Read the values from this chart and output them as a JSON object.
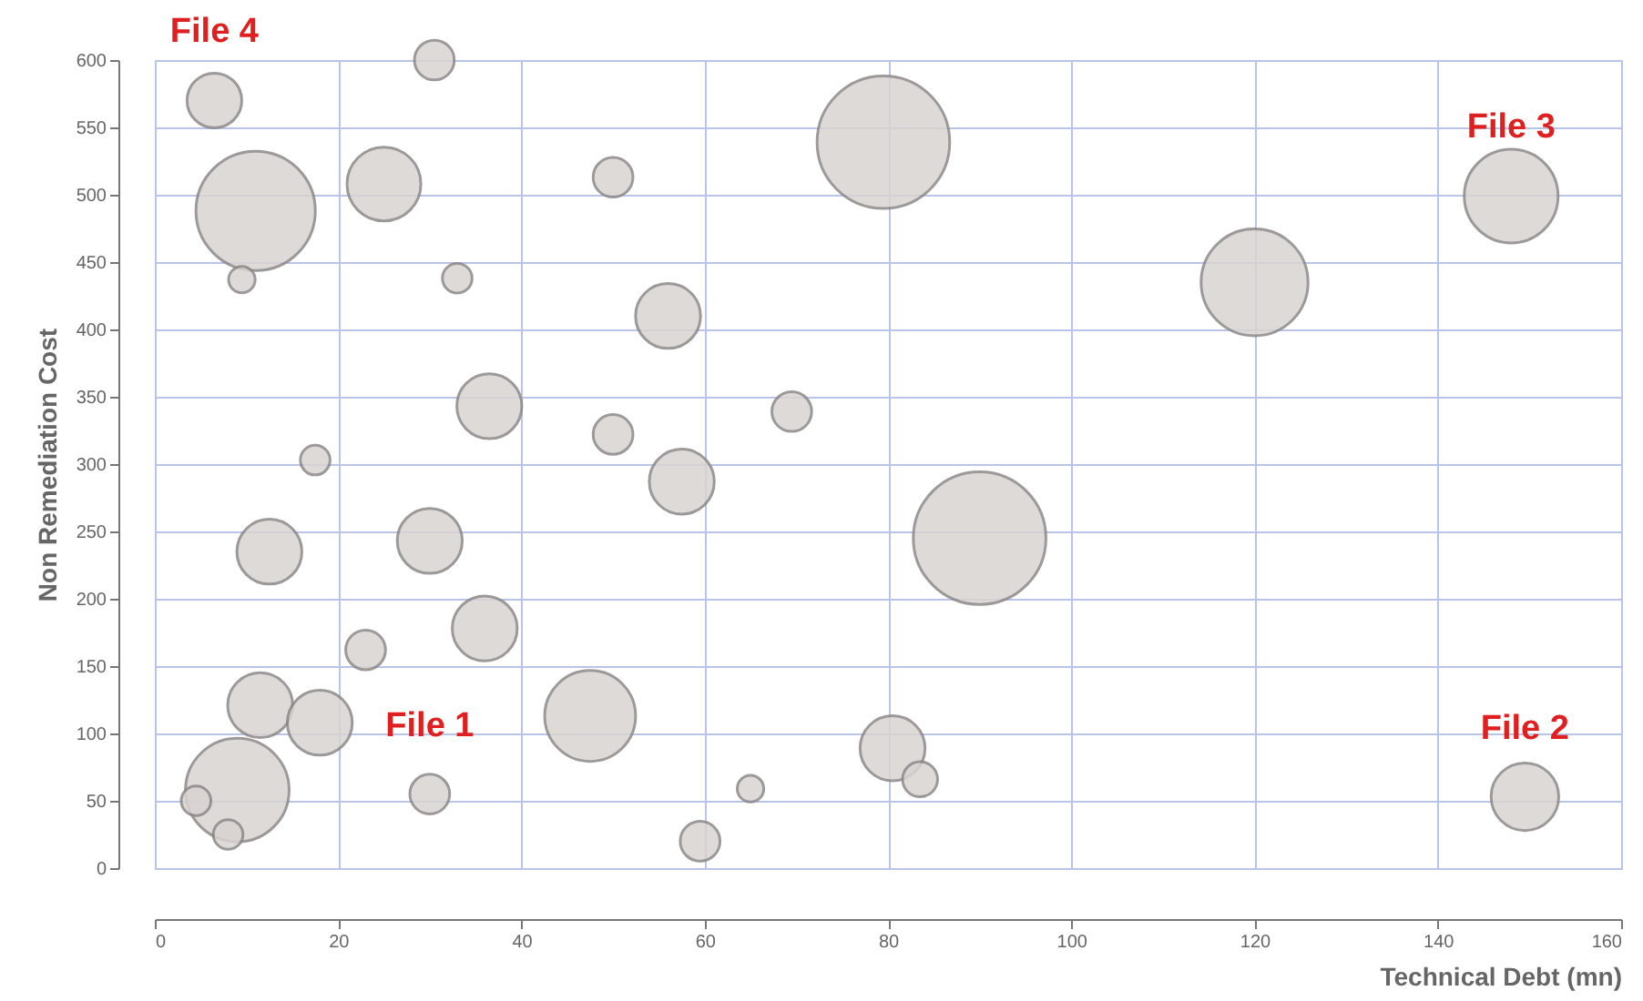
{
  "chart_data": {
    "type": "bubble",
    "xlabel": "Technical Debt (mn)",
    "ylabel": "Non Remediation Cost",
    "color": "#d9d4d2",
    "xlim": [
      0,
      160
    ],
    "ylim": [
      0,
      600
    ],
    "xticks": [
      0,
      20,
      40,
      60,
      80,
      100,
      120,
      140,
      160
    ],
    "yticks": [
      0,
      50,
      100,
      150,
      200,
      250,
      300,
      350,
      400,
      450,
      500,
      550,
      600
    ],
    "grid": true,
    "x": [
      6.5,
      11,
      9.5,
      25,
      30.5,
      33,
      50,
      56,
      36.5,
      17.5,
      50,
      69.5,
      57.5,
      79.5,
      90,
      120,
      148,
      149.5,
      12.5,
      30,
      36,
      23,
      11.5,
      18,
      9,
      4.5,
      8,
      30,
      47.5,
      65,
      59.5,
      80.5,
      83.5
    ],
    "values": [
      570,
      488,
      437,
      508,
      600,
      438,
      513,
      410,
      343,
      303,
      322,
      339,
      287,
      539,
      245,
      435,
      499,
      53,
      235,
      243,
      178,
      162,
      121,
      108,
      58,
      50,
      25,
      55,
      113,
      59,
      20,
      89,
      66
    ],
    "sizes": [
      0.17,
      0.81,
      0.04,
      0.31,
      0.09,
      0.05,
      0.09,
      0.24,
      0.24,
      0.05,
      0.09,
      0.09,
      0.24,
      1,
      1,
      0.65,
      0.5,
      0.26,
      0.24,
      0.24,
      0.24,
      0.09,
      0.24,
      0.24,
      0.61,
      0.05,
      0.05,
      0.09,
      0.47,
      0.04,
      0.09,
      0.24,
      0.07
    ],
    "annotations": [
      {
        "text": "File 4",
        "x": 6.5,
        "y": 570
      },
      {
        "text": "File 3",
        "x": 148,
        "y": 499
      },
      {
        "text": "File 1",
        "x": 30,
        "y": 55
      },
      {
        "text": "File 2",
        "x": 149.5,
        "y": 53
      }
    ]
  }
}
